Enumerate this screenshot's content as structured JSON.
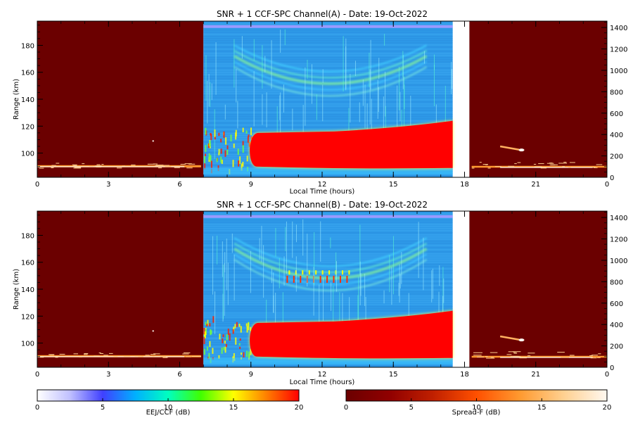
{
  "chart_data": [
    {
      "type": "heatmap",
      "title": "SNR + 1 CCF-SPC Channel(A) - Date: 19-Oct-2022",
      "xlabel": "Local Time (hours)",
      "ylabel": "Range (km)",
      "xlim": [
        0,
        24
      ],
      "ylim": [
        82,
        198
      ],
      "xticks": [
        "0",
        "3",
        "6",
        "9",
        "12",
        "15",
        "18",
        "21",
        "0"
      ],
      "yticks": [
        100,
        120,
        140,
        160,
        180
      ],
      "y2ticks": [
        0,
        200,
        400,
        600,
        800,
        1000,
        1200,
        1400
      ],
      "y2lim": [
        0,
        1460
      ],
      "regions": {
        "spread_f_pre": [
          0,
          7
        ],
        "eej_ccf": [
          7,
          17.5
        ],
        "spread_f_post": [
          18.2,
          24
        ]
      },
      "eej_layer": {
        "start_hour": 8.9,
        "end_hour": 17.5,
        "bottom_km": 90,
        "top_start_km": 115,
        "top_end_km": 124
      },
      "valley_arc": {
        "center_hour": 12.3,
        "top_km": 153,
        "edges_km": 180
      }
    },
    {
      "type": "heatmap",
      "title": "SNR + 1 CCF-SPC Channel(B) - Date: 19-Oct-2022",
      "xlabel": "Local Time (hours)",
      "ylabel": "Range (km)",
      "xlim": [
        0,
        24
      ],
      "ylim": [
        82,
        198
      ],
      "xticks": [
        "0",
        "3",
        "6",
        "9",
        "12",
        "15",
        "18",
        "21",
        "0"
      ],
      "yticks": [
        100,
        120,
        140,
        160,
        180
      ],
      "y2ticks": [
        0,
        200,
        400,
        600,
        800,
        1000,
        1200,
        1400
      ],
      "y2lim": [
        0,
        1460
      ],
      "regions": {
        "spread_f_pre": [
          0,
          7
        ],
        "eej_ccf": [
          7,
          17.5
        ],
        "spread_f_post": [
          18.2,
          24
        ]
      },
      "eej_layer": {
        "start_hour": 8.9,
        "end_hour": 17.5,
        "bottom_km": 90,
        "top_start_km": 115,
        "top_end_km": 124
      },
      "valley_arc": {
        "center_hour": 12.3,
        "top_km": 148,
        "edges_km": 178
      }
    }
  ],
  "colorbars": [
    {
      "label": "EEJ/CCF (dB)",
      "ticks": [
        "0",
        "5",
        "10",
        "15",
        "20"
      ],
      "range": [
        0,
        20
      ],
      "stops": [
        "#ffffff",
        "#c0c0ff",
        "#4040ff",
        "#00b0ff",
        "#00ffc0",
        "#40ff00",
        "#ffff00",
        "#ff8000",
        "#ff0000"
      ]
    },
    {
      "label": "Spread-F (dB)",
      "ticks": [
        "0",
        "5",
        "10",
        "15",
        "20"
      ],
      "range": [
        0,
        20
      ],
      "stops": [
        "#6b0000",
        "#900000",
        "#c02000",
        "#ff5000",
        "#ff9a30",
        "#ffd090",
        "#fff8f0"
      ]
    }
  ],
  "colors": {
    "spread_f_bg": "#6b0000",
    "eej_bg": "#2e9ae8",
    "eej_core": "#ff0000",
    "top_band": "#9a9aff"
  }
}
